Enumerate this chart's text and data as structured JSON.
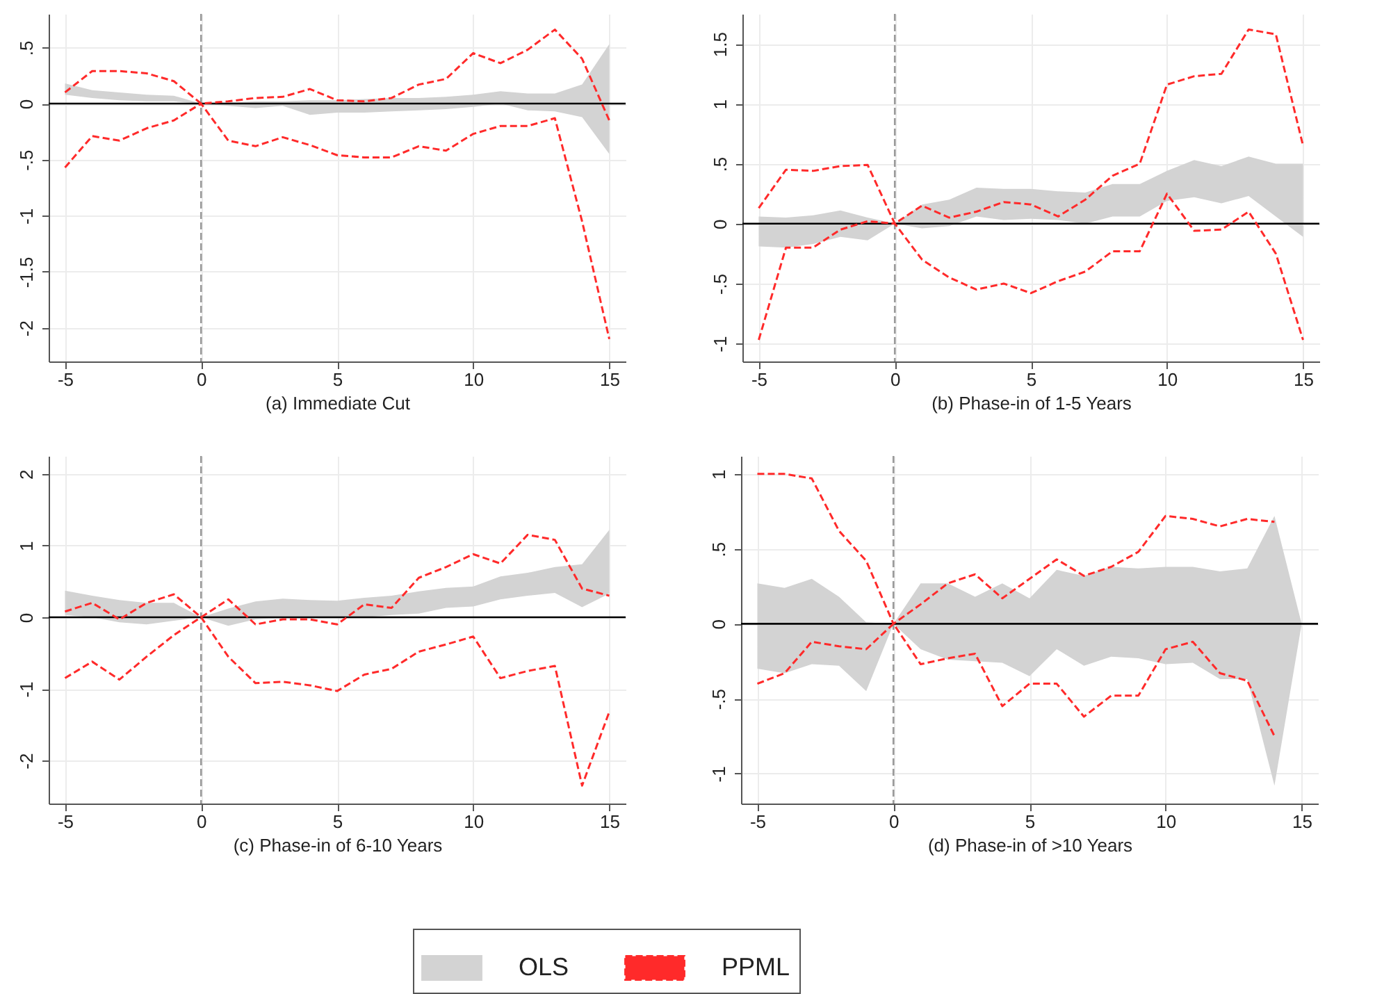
{
  "chart_data": [
    {
      "type": "area",
      "xlabel": "(a) Immediate Cut",
      "x": [
        -5,
        -4,
        -3,
        -2,
        -1,
        0,
        1,
        2,
        3,
        4,
        5,
        6,
        7,
        8,
        9,
        10,
        11,
        12,
        13,
        14,
        15
      ],
      "xlim": [
        -5.6,
        15.6
      ],
      "xticks": [
        -5,
        0,
        5,
        10,
        15
      ],
      "ylim": [
        -2.3,
        0.8
      ],
      "yticks": [
        {
          "value": -2,
          "label": "-2"
        },
        {
          "value": -1.5,
          "label": "-1.5"
        },
        {
          "value": -1,
          "label": "-1"
        },
        {
          "value": -0.5,
          "label": "-.5"
        },
        {
          "value": 0,
          "label": "0"
        },
        {
          "value": 0.5,
          "label": ".5"
        }
      ],
      "grid": true,
      "ref_lines": [
        {
          "axis": "x",
          "value": 0,
          "color": "#999999",
          "line_style": "dashed"
        },
        {
          "axis": "y",
          "value": 0,
          "color": "#000000"
        }
      ],
      "series": [
        {
          "color": "#d3d3d3",
          "values": [
            null,
            null,
            null,
            null,
            null,
            null,
            null,
            null,
            null,
            null,
            null,
            null,
            null,
            null,
            null,
            null,
            null,
            null,
            null,
            null,
            null
          ],
          "upper": [
            0.18,
            0.12,
            0.1,
            0.08,
            0.07,
            0,
            0.01,
            0.02,
            0.02,
            0.03,
            0.03,
            0.04,
            0.05,
            0.05,
            0.06,
            0.08,
            0.11,
            0.09,
            0.09,
            0.17,
            0.53
          ],
          "lower": [
            0.08,
            0.05,
            0.03,
            0.02,
            0.02,
            0,
            -0.02,
            -0.04,
            -0.02,
            -0.1,
            -0.08,
            -0.08,
            -0.07,
            -0.06,
            -0.05,
            -0.03,
            0,
            -0.06,
            -0.07,
            -0.12,
            -0.45
          ]
        },
        {
          "type": "line",
          "color": "#ff2a2a",
          "line_style": "dashed",
          "values": [
            0.1,
            0.29,
            0.29,
            0.27,
            0.2,
            0,
            0.02,
            0.05,
            0.06,
            0.13,
            0.03,
            0.02,
            0.05,
            0.17,
            0.22,
            0.45,
            0.36,
            0.48,
            0.66,
            0.4,
            -0.15
          ]
        },
        {
          "type": "line",
          "color": "#ff2a2a",
          "line_style": "dashed",
          "values": [
            -0.57,
            -0.29,
            -0.33,
            -0.22,
            -0.15,
            0,
            -0.33,
            -0.38,
            -0.3,
            -0.37,
            -0.46,
            -0.48,
            -0.48,
            -0.38,
            -0.42,
            -0.27,
            -0.2,
            -0.2,
            -0.13,
            -1.05,
            -2.1
          ]
        }
      ]
    },
    {
      "type": "area",
      "xlabel": "(b) Phase-in of 1-5 Years",
      "x": [
        -5,
        -4,
        -3,
        -2,
        -1,
        0,
        1,
        2,
        3,
        4,
        5,
        6,
        7,
        8,
        9,
        10,
        11,
        12,
        13,
        14,
        15
      ],
      "xlim": [
        -5.6,
        15.6
      ],
      "xticks": [
        -5,
        0,
        5,
        10,
        15
      ],
      "ylim": [
        -1.15,
        1.75
      ],
      "yticks": [
        {
          "value": -1,
          "label": "-1"
        },
        {
          "value": -0.5,
          "label": "-.5"
        },
        {
          "value": 0,
          "label": "0"
        },
        {
          "value": 0.5,
          "label": ".5"
        },
        {
          "value": 1,
          "label": "1"
        },
        {
          "value": 1.5,
          "label": "1.5"
        }
      ],
      "grid": true,
      "ref_lines": [
        {
          "axis": "x",
          "value": 0,
          "color": "#999999",
          "line_style": "dashed"
        },
        {
          "axis": "y",
          "value": 0,
          "color": "#000000"
        }
      ],
      "series": [
        {
          "color": "#d3d3d3",
          "values": [
            null,
            null,
            null,
            null,
            null,
            null,
            null,
            null,
            null,
            null,
            null,
            null,
            null,
            null,
            null,
            null,
            null,
            null,
            null,
            null,
            null
          ],
          "upper": [
            0.06,
            0.05,
            0.07,
            0.11,
            0.05,
            0,
            0.16,
            0.2,
            0.3,
            0.29,
            0.29,
            0.27,
            0.26,
            0.33,
            0.33,
            0.44,
            0.53,
            0.48,
            0.56,
            0.5,
            0.5
          ],
          "lower": [
            -0.19,
            -0.2,
            -0.17,
            -0.11,
            -0.14,
            0,
            -0.04,
            -0.02,
            0.06,
            0.03,
            0.04,
            0.03,
            0,
            0.06,
            0.06,
            0.19,
            0.22,
            0.17,
            0.23,
            0.06,
            -0.11
          ]
        },
        {
          "type": "line",
          "color": "#ff2a2a",
          "line_style": "dashed",
          "values": [
            0.13,
            0.45,
            0.44,
            0.48,
            0.49,
            0,
            0.15,
            0.05,
            0.1,
            0.18,
            0.16,
            0.06,
            0.2,
            0.4,
            0.5,
            1.16,
            1.23,
            1.25,
            1.62,
            1.58,
            0.65
          ]
        },
        {
          "type": "line",
          "color": "#ff2a2a",
          "line_style": "dashed",
          "values": [
            -0.97,
            -0.2,
            -0.2,
            -0.05,
            0.02,
            0,
            -0.3,
            -0.45,
            -0.55,
            -0.5,
            -0.58,
            -0.48,
            -0.4,
            -0.23,
            -0.23,
            0.25,
            -0.06,
            -0.05,
            0.1,
            -0.25,
            -0.97
          ]
        }
      ]
    },
    {
      "type": "area",
      "xlabel": "(c) Phase-in of 6-10 Years",
      "x": [
        -5,
        -4,
        -3,
        -2,
        -1,
        0,
        1,
        2,
        3,
        4,
        5,
        6,
        7,
        8,
        9,
        10,
        11,
        12,
        13,
        14,
        15
      ],
      "xlim": [
        -5.6,
        15.6
      ],
      "xticks": [
        -5,
        0,
        5,
        10,
        15
      ],
      "ylim": [
        -2.6,
        2.25
      ],
      "yticks": [
        -2,
        -1,
        0,
        1,
        2
      ],
      "grid": true,
      "ref_lines": [
        {
          "axis": "x",
          "value": 0,
          "color": "#999999",
          "line_style": "dashed"
        },
        {
          "axis": "y",
          "value": 0,
          "color": "#000000"
        }
      ],
      "series": [
        {
          "color": "#d3d3d3",
          "values": [
            null,
            null,
            null,
            null,
            null,
            null,
            null,
            null,
            null,
            null,
            null,
            null,
            null,
            null,
            null,
            null,
            null,
            null,
            null,
            null,
            null
          ],
          "upper": [
            0.37,
            0.3,
            0.24,
            0.2,
            0.2,
            0,
            0.12,
            0.22,
            0.26,
            0.24,
            0.23,
            0.27,
            0.3,
            0.36,
            0.41,
            0.43,
            0.57,
            0.62,
            0.7,
            0.74,
            1.22
          ],
          "lower": [
            0.03,
            0,
            -0.07,
            -0.1,
            -0.05,
            0,
            -0.12,
            -0.03,
            -0.01,
            -0.01,
            -0.01,
            0,
            0.03,
            0.05,
            0.13,
            0.15,
            0.25,
            0.3,
            0.34,
            0.14,
            0.33
          ]
        },
        {
          "type": "line",
          "color": "#ff2a2a",
          "line_style": "dashed",
          "values": [
            0.08,
            0.2,
            -0.03,
            0.2,
            0.32,
            0,
            0.25,
            -0.1,
            -0.03,
            -0.03,
            -0.1,
            0.18,
            0.13,
            0.55,
            0.7,
            0.88,
            0.75,
            1.15,
            1.08,
            0.4,
            0.3
          ]
        },
        {
          "type": "line",
          "color": "#ff2a2a",
          "line_style": "dashed",
          "values": [
            -0.85,
            -0.62,
            -0.87,
            -0.55,
            -0.25,
            0,
            -0.55,
            -0.92,
            -0.9,
            -0.95,
            -1.03,
            -0.8,
            -0.72,
            -0.48,
            -0.38,
            -0.27,
            -0.85,
            -0.75,
            -0.68,
            -2.35,
            -1.32
          ]
        }
      ]
    },
    {
      "type": "area",
      "xlabel": "(d) Phase-in of >10 Years",
      "x": [
        -5,
        -4,
        -3,
        -2,
        -1,
        0,
        1,
        2,
        3,
        4,
        5,
        6,
        7,
        8,
        9,
        10,
        11,
        12,
        13,
        14,
        15
      ],
      "xlim": [
        -5.6,
        15.6
      ],
      "xticks": [
        -5,
        0,
        5,
        10,
        15
      ],
      "ylim": [
        -1.2,
        1.12
      ],
      "yticks": [
        {
          "value": -1,
          "label": "-1"
        },
        {
          "value": -0.5,
          "label": "-.5"
        },
        {
          "value": 0,
          "label": "0"
        },
        {
          "value": 0.5,
          "label": ".5"
        },
        {
          "value": 1,
          "label": "1"
        }
      ],
      "grid": true,
      "legend": "bottom",
      "ref_lines": [
        {
          "axis": "x",
          "value": 0,
          "color": "#999999",
          "line_style": "dashed"
        },
        {
          "axis": "y",
          "value": 0,
          "color": "#000000"
        }
      ],
      "series": [
        {
          "name": "OLS",
          "color": "#d3d3d3",
          "values": [
            null,
            null,
            null,
            null,
            null,
            null,
            null,
            null,
            null,
            null,
            null,
            null,
            null,
            null,
            null,
            null,
            null,
            null,
            null,
            null,
            null
          ],
          "upper": [
            0.27,
            0.24,
            0.3,
            0.18,
            0.01,
            0,
            0.27,
            0.27,
            0.18,
            0.27,
            0.17,
            0.36,
            0.32,
            0.38,
            0.37,
            0.38,
            0.38,
            0.35,
            0.37,
            0.72,
            0
          ],
          "lower": [
            -0.3,
            -0.33,
            -0.27,
            -0.28,
            -0.45,
            0,
            -0.17,
            -0.24,
            -0.25,
            -0.26,
            -0.35,
            -0.17,
            -0.28,
            -0.22,
            -0.23,
            -0.27,
            -0.26,
            -0.37,
            -0.37,
            -1.08,
            0
          ]
        },
        {
          "name": "PPML",
          "type": "line",
          "color": "#ff2a2a",
          "line_style": "dashed",
          "values": [
            1.0,
            1.0,
            0.97,
            0.62,
            0.42,
            0,
            0.13,
            0.27,
            0.33,
            0.17,
            0.3,
            0.43,
            0.32,
            0.38,
            0.48,
            0.72,
            0.7,
            0.65,
            0.7,
            0.68,
            null
          ]
        },
        {
          "type": "line",
          "color": "#ff2a2a",
          "line_style": "dashed",
          "values": [
            -0.4,
            -0.33,
            -0.12,
            -0.15,
            -0.17,
            0,
            -0.27,
            -0.23,
            -0.2,
            -0.55,
            -0.4,
            -0.4,
            -0.62,
            -0.48,
            -0.48,
            -0.17,
            -0.12,
            -0.33,
            -0.38,
            -0.75,
            null
          ]
        }
      ]
    }
  ]
}
